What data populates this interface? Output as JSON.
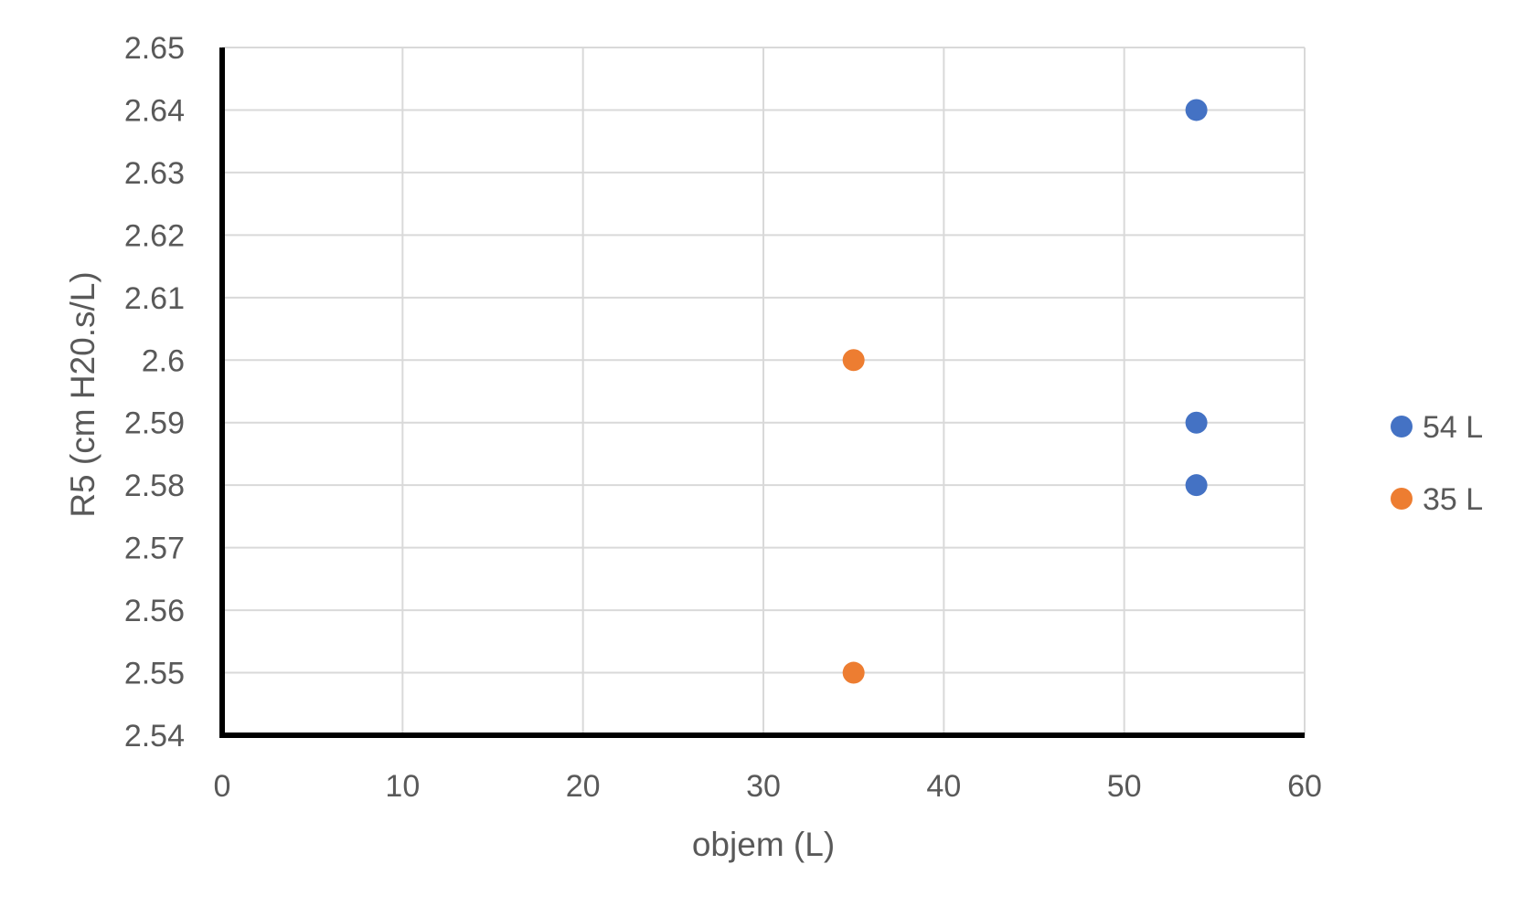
{
  "chart_data": {
    "type": "scatter",
    "xlabel": "objem (L)",
    "ylabel": "R5 (cm H20.s/L)",
    "xlim": [
      0,
      60
    ],
    "ylim": [
      2.54,
      2.65
    ],
    "x_ticks": [
      "0",
      "10",
      "20",
      "30",
      "40",
      "50",
      "60"
    ],
    "y_ticks": [
      "2.54",
      "2.55",
      "2.56",
      "2.57",
      "2.58",
      "2.59",
      "2.6",
      "2.61",
      "2.62",
      "2.63",
      "2.64",
      "2.65"
    ],
    "grid": true,
    "legend_position": "right",
    "series": [
      {
        "name": "54 L",
        "color": "#4472c4",
        "points": [
          {
            "x": 54,
            "y": 2.64
          },
          {
            "x": 54,
            "y": 2.59
          },
          {
            "x": 54,
            "y": 2.58
          }
        ]
      },
      {
        "name": "35 L",
        "color": "#ed7d31",
        "points": [
          {
            "x": 35,
            "y": 2.6
          },
          {
            "x": 35,
            "y": 2.55
          }
        ]
      }
    ]
  }
}
